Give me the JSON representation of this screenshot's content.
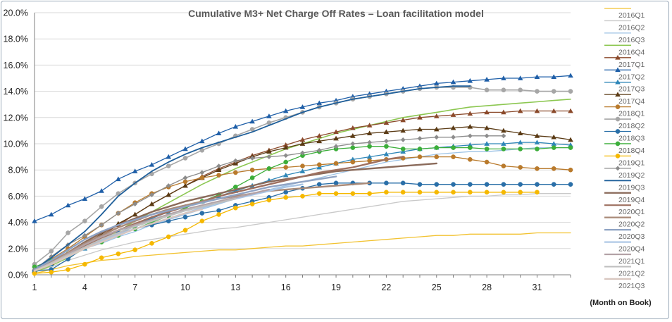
{
  "chart_data": {
    "type": "line",
    "title": "Cumulative M3+ Net Charge Off Rates – Loan facilitation model",
    "xlabel": "(Month on Book)",
    "ylabel": "",
    "xlim": [
      1,
      33
    ],
    "ylim": [
      0,
      20
    ],
    "x_ticks": [
      1,
      4,
      7,
      10,
      13,
      16,
      19,
      22,
      25,
      28,
      31
    ],
    "y_ticks": [
      "0.0%",
      "2.0%",
      "4.0%",
      "6.0%",
      "8.0%",
      "10.0%",
      "12.0%",
      "14.0%",
      "16.0%",
      "18.0%",
      "20.0%"
    ],
    "legend_position": "right",
    "grid": "horizontal",
    "series": [
      {
        "name": "2016Q1",
        "color": "#f2c230",
        "marker": "none",
        "width": 1.3,
        "values": [
          0.1,
          0.4,
          0.7,
          0.9,
          1.1,
          1.2,
          1.4,
          1.5,
          1.6,
          1.7,
          1.8,
          1.9,
          1.9,
          2.0,
          2.1,
          2.2,
          2.2,
          2.3,
          2.4,
          2.5,
          2.6,
          2.7,
          2.8,
          2.9,
          3.0,
          3.0,
          3.1,
          3.1,
          3.1,
          3.1,
          3.2,
          3.2,
          3.2
        ]
      },
      {
        "name": "2016Q2",
        "color": "#c9c9c9",
        "marker": "none",
        "width": 1.3,
        "values": [
          0.2,
          0.6,
          1.1,
          1.5,
          1.9,
          2.2,
          2.5,
          2.7,
          2.9,
          3.1,
          3.3,
          3.5,
          3.6,
          3.8,
          4.0,
          4.2,
          4.4,
          4.6,
          4.8,
          5.0,
          5.2,
          5.4,
          5.6,
          5.7,
          5.8,
          5.9,
          6.0,
          6.0,
          6.1,
          6.1,
          6.2,
          6.2,
          6.2
        ]
      },
      {
        "name": "2016Q3",
        "color": "#9dc3e6",
        "marker": "none",
        "width": 1.3,
        "values": [
          0.3,
          0.9,
          1.5,
          2.0,
          2.4,
          2.9,
          3.3,
          3.8,
          4.2,
          4.6,
          5.0,
          5.4,
          5.8,
          6.2,
          6.5,
          6.8,
          7.1,
          7.4,
          7.7,
          8.0,
          8.3,
          8.6,
          8.8,
          9.0,
          9.2,
          9.3,
          9.4,
          9.4,
          9.5,
          9.6,
          9.7,
          9.7,
          9.7
        ]
      },
      {
        "name": "2016Q4",
        "color": "#8cc751",
        "marker": "none",
        "width": 1.6,
        "values": [
          0.2,
          0.7,
          1.3,
          2.0,
          2.6,
          3.3,
          4.1,
          4.8,
          5.5,
          6.2,
          6.9,
          7.5,
          8.1,
          8.6,
          9.1,
          9.6,
          10.0,
          10.4,
          10.8,
          11.1,
          11.4,
          11.7,
          12.0,
          12.2,
          12.4,
          12.6,
          12.8,
          12.9,
          13.0,
          13.1,
          13.2,
          13.3,
          13.4
        ]
      },
      {
        "name": "2017Q1",
        "color": "#8b4a2b",
        "marker": "triangle",
        "width": 1.3,
        "values": [
          0.3,
          0.9,
          1.6,
          2.3,
          3.0,
          3.8,
          4.6,
          5.4,
          6.1,
          6.8,
          7.5,
          8.1,
          8.6,
          9.1,
          9.5,
          9.9,
          10.3,
          10.6,
          10.9,
          11.2,
          11.4,
          11.6,
          11.8,
          12.0,
          12.1,
          12.2,
          12.3,
          12.4,
          12.4,
          12.5,
          12.5,
          12.5,
          12.5
        ]
      },
      {
        "name": "2017Q2",
        "color": "#1f5fa8",
        "marker": "triangle",
        "width": 1.3,
        "values": [
          4.1,
          4.6,
          5.3,
          5.8,
          6.4,
          7.3,
          7.9,
          8.4,
          9.0,
          9.6,
          10.2,
          10.8,
          11.3,
          11.7,
          12.1,
          12.5,
          12.8,
          13.1,
          13.3,
          13.6,
          13.8,
          14.0,
          14.2,
          14.4,
          14.6,
          14.7,
          14.8,
          14.9,
          15.0,
          15.0,
          15.1,
          15.1,
          15.2
        ]
      },
      {
        "name": "2017Q3",
        "color": "#2e86b8",
        "marker": "triangle",
        "width": 1.3,
        "values": [
          0.3,
          0.8,
          1.4,
          2.0,
          2.6,
          3.2,
          3.8,
          4.3,
          4.8,
          5.2,
          5.6,
          6.0,
          6.4,
          6.8,
          7.2,
          7.6,
          7.9,
          8.2,
          8.5,
          8.8,
          9.0,
          9.2,
          9.4,
          9.6,
          9.7,
          9.8,
          9.9,
          10.0,
          10.0,
          10.1,
          10.1,
          10.0,
          9.9
        ]
      },
      {
        "name": "2017Q4",
        "color": "#5a3a14",
        "marker": "triangle",
        "width": 1.3,
        "values": [
          0.3,
          0.9,
          1.6,
          2.3,
          3.1,
          3.9,
          4.6,
          5.4,
          6.1,
          6.8,
          7.4,
          8.0,
          8.5,
          9.0,
          9.4,
          9.7,
          10.0,
          10.2,
          10.4,
          10.6,
          10.8,
          10.9,
          11.0,
          11.1,
          11.1,
          11.2,
          11.3,
          11.2,
          11.0,
          10.8,
          10.6,
          10.5,
          10.3
        ]
      },
      {
        "name": "2018Q1",
        "color": "#b97a2c",
        "marker": "circle",
        "width": 1.3,
        "values": [
          0.3,
          1.2,
          2.0,
          2.9,
          3.8,
          4.7,
          5.5,
          6.2,
          6.7,
          7.1,
          7.4,
          7.6,
          7.8,
          8.0,
          8.1,
          8.2,
          8.3,
          8.4,
          8.5,
          8.6,
          8.7,
          8.8,
          8.9,
          9.0,
          9.0,
          9.0,
          8.8,
          8.6,
          8.3,
          8.2,
          8.1,
          8.1,
          8.0
        ]
      },
      {
        "name": "2018Q2",
        "color": "#a6a6a6",
        "marker": "circle",
        "width": 1.6,
        "values": [
          0.8,
          1.8,
          3.2,
          4.1,
          5.2,
          6.2,
          7.0,
          7.7,
          8.3,
          8.9,
          9.5,
          10.0,
          10.6,
          11.1,
          11.6,
          12.0,
          12.4,
          12.8,
          13.1,
          13.4,
          13.6,
          13.8,
          14.0,
          14.2,
          14.3,
          14.3,
          14.3,
          14.1,
          14.1,
          14.1,
          14.0,
          14.0,
          14.0
        ]
      },
      {
        "name": "2018Q3",
        "color": "#2a6fa8",
        "marker": "circle",
        "width": 1.3,
        "values": [
          0.3,
          0.4,
          1.2,
          2.1,
          2.8,
          3.2,
          3.5,
          3.8,
          4.1,
          4.4,
          4.7,
          4.9,
          5.3,
          5.6,
          5.9,
          6.3,
          6.6,
          6.9,
          7.0,
          7.0,
          7.0,
          7.0,
          7.0,
          6.9,
          6.9,
          6.9,
          6.9,
          6.9,
          6.9,
          6.9,
          6.9,
          6.9,
          6.9
        ]
      },
      {
        "name": "2018Q4",
        "color": "#3cae3a",
        "marker": "circle",
        "width": 1.3,
        "values": [
          0.6,
          1.1,
          1.6,
          2.1,
          2.5,
          3.0,
          3.5,
          4.0,
          4.5,
          5.1,
          5.6,
          6.1,
          6.7,
          7.4,
          8.1,
          8.6,
          9.1,
          9.4,
          9.6,
          9.7,
          9.8,
          9.8,
          9.6,
          9.6,
          9.7,
          9.7,
          9.7,
          9.6,
          9.6,
          9.6,
          9.6,
          9.7,
          9.7
        ]
      },
      {
        "name": "2019Q1",
        "color": "#f5b800",
        "marker": "circle",
        "width": 1.3,
        "values": [
          0.1,
          0.2,
          0.4,
          0.8,
          1.3,
          1.6,
          1.9,
          2.4,
          2.9,
          3.4,
          4.1,
          4.6,
          5.1,
          5.4,
          5.7,
          5.9,
          6.0,
          6.2,
          6.2,
          6.2,
          6.2,
          6.3,
          6.3,
          6.3,
          6.3,
          6.3,
          6.3,
          6.3,
          6.3,
          6.3,
          6.3
        ]
      },
      {
        "name": "2019Q2",
        "color": "#8c8c8c",
        "marker": "diamond",
        "width": 1.3,
        "values": [
          0.4,
          1.4,
          2.3,
          3.0,
          3.8,
          4.7,
          5.4,
          6.1,
          6.8,
          7.4,
          7.8,
          8.3,
          8.7,
          8.9,
          9.0,
          9.1,
          9.3,
          9.5,
          9.8,
          10.0,
          10.1,
          10.2,
          10.3,
          10.4,
          10.5,
          10.5,
          10.6,
          10.6,
          10.6
        ]
      },
      {
        "name": "2019Q3",
        "color": "#1f5f9a",
        "marker": "none",
        "width": 1.8,
        "values": [
          0.4,
          1.3,
          2.3,
          3.3,
          4.6,
          6.0,
          7.0,
          7.9,
          8.6,
          9.2,
          9.7,
          10.1,
          10.5,
          10.9,
          11.4,
          11.9,
          12.4,
          12.8,
          13.1,
          13.4,
          13.6,
          13.8,
          14.0,
          14.2,
          14.3,
          14.4,
          14.4
        ]
      },
      {
        "name": "2019Q4",
        "color": "#8a6a5a",
        "marker": "none",
        "width": 2.4,
        "values": [
          0.3,
          1.0,
          1.7,
          2.5,
          3.2,
          3.8,
          4.3,
          4.8,
          5.2,
          5.6,
          5.9,
          6.2,
          6.5,
          6.8,
          7.1,
          7.3,
          7.5,
          7.7,
          7.9,
          8.0,
          8.1,
          8.2,
          8.3,
          8.4,
          8.5
        ]
      },
      {
        "name": "2020Q1",
        "color": "#9e7060",
        "marker": "none",
        "width": 2.4,
        "values": [
          0.3,
          0.9,
          1.6,
          2.2,
          2.8,
          3.4,
          3.9,
          4.4,
          4.8,
          5.2,
          5.6,
          6.0,
          6.3,
          6.6,
          6.9,
          7.2,
          7.5,
          7.8,
          8.0,
          8.2,
          8.5,
          8.8,
          9.0
        ]
      },
      {
        "name": "2020Q2",
        "color": "#a98a78",
        "marker": "none",
        "width": 2.4,
        "values": [
          0.3,
          1.0,
          1.7,
          2.4,
          3.0,
          3.6,
          4.1,
          4.6,
          5.0,
          5.3,
          5.6,
          5.8,
          6.0,
          6.2,
          6.4,
          6.5,
          6.6,
          6.7,
          6.8,
          6.9,
          7.0
        ]
      },
      {
        "name": "2020Q3",
        "color": "#8fa3c4",
        "marker": "none",
        "width": 2.4,
        "values": [
          0.4,
          1.1,
          1.9,
          2.7,
          3.3,
          3.8,
          4.2,
          4.6,
          4.9,
          5.2,
          5.5,
          5.8,
          6.1,
          6.4,
          6.7,
          6.9,
          7.1,
          7.3,
          7.5
        ]
      },
      {
        "name": "2020Q4",
        "color": "#a9c4e4",
        "marker": "none",
        "width": 2.4,
        "values": [
          0.3,
          0.8,
          1.4,
          2.0,
          2.6,
          3.1,
          3.5,
          3.9,
          4.3,
          4.7,
          5.1,
          5.5,
          5.8,
          6.1,
          6.4,
          6.7,
          6.9
        ]
      },
      {
        "name": "2021Q1",
        "color": "#b3a2a6",
        "marker": "none",
        "width": 2.4,
        "values": [
          0.3,
          0.9,
          1.6,
          2.3,
          2.9,
          3.4,
          3.8,
          4.2,
          4.6,
          5.0,
          5.3,
          5.6,
          5.9,
          6.2,
          6.5
        ]
      },
      {
        "name": "2021Q2",
        "color": "#bfbfbf",
        "marker": "none",
        "width": 2.4,
        "values": [
          0.3,
          0.9,
          1.5,
          2.1,
          2.7,
          3.2,
          3.7,
          4.1,
          4.5,
          4.9,
          5.2,
          5.5,
          5.8
        ]
      },
      {
        "name": "2021Q3",
        "color": "#d8c6bf",
        "marker": "none",
        "width": 2.4,
        "values": [
          0.3,
          0.8,
          1.4,
          2.0,
          2.5,
          3.0,
          3.5,
          3.9,
          4.3,
          4.7,
          5.0
        ]
      }
    ]
  }
}
